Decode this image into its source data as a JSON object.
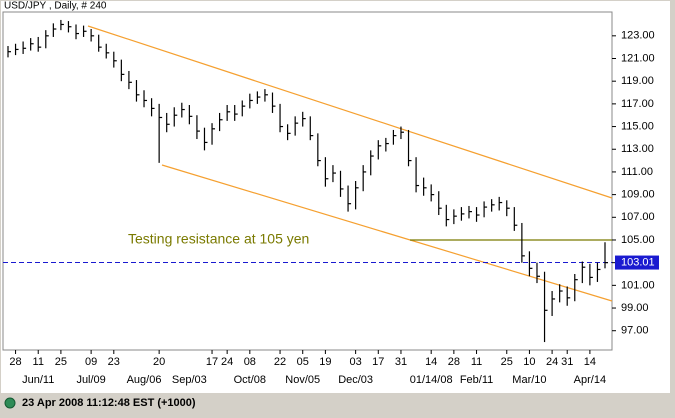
{
  "header": {
    "title": "USD/JPY , Daily, # 240"
  },
  "footer": {
    "timestamp": "23 Apr 2008 11:12:48 EST (+1000)"
  },
  "chart_data": {
    "type": "ohlc",
    "color": "#000000",
    "ylim": [
      95.3,
      125.1
    ],
    "yticks": [
      {
        "value": 97,
        "label": "97.00"
      },
      {
        "value": 99,
        "label": "99.00"
      },
      {
        "value": 101,
        "label": "101.00"
      },
      {
        "value": 103,
        "label": "103.00"
      },
      {
        "value": 105,
        "label": "105.00"
      },
      {
        "value": 107,
        "label": "107.00"
      },
      {
        "value": 109,
        "label": "109.00"
      },
      {
        "value": 111,
        "label": "111.00"
      },
      {
        "value": 113,
        "label": "113.00"
      },
      {
        "value": 115,
        "label": "115.00"
      },
      {
        "value": 117,
        "label": "117.00"
      },
      {
        "value": 119,
        "label": "119.00"
      },
      {
        "value": 121,
        "label": "121.00"
      },
      {
        "value": 123,
        "label": "123.00"
      }
    ],
    "last_price": {
      "value": 103.01,
      "label": "103.01",
      "color": "#1a1ad0"
    },
    "resistance": {
      "value": 105,
      "label": "Testing resistance at 105 yen",
      "color": "#7a7a00"
    },
    "day_labels": [
      null,
      "28",
      null,
      null,
      "11",
      null,
      null,
      "25",
      null,
      null,
      null,
      "09",
      null,
      null,
      "23",
      null,
      null,
      null,
      null,
      null,
      "20",
      null,
      null,
      null,
      null,
      null,
      null,
      "17",
      null,
      "24",
      null,
      null,
      "08",
      null,
      null,
      null,
      "22",
      null,
      null,
      "05",
      null,
      null,
      "19",
      null,
      null,
      null,
      "03",
      null,
      null,
      "17",
      null,
      null,
      "31",
      null,
      null,
      null,
      "14",
      null,
      null,
      "28",
      null,
      null,
      "11",
      null,
      null,
      null,
      "25",
      null,
      null,
      "10",
      null,
      null,
      "24",
      null,
      "31",
      null,
      null,
      "14",
      null,
      null
    ],
    "month_labels": [
      null,
      null,
      null,
      null,
      "Jun/11",
      null,
      null,
      null,
      null,
      null,
      null,
      "Jul/09",
      null,
      null,
      null,
      null,
      null,
      null,
      "Aug/06",
      null,
      null,
      null,
      null,
      null,
      "Sep/03",
      null,
      null,
      null,
      null,
      null,
      null,
      null,
      "Oct/08",
      null,
      null,
      null,
      null,
      null,
      null,
      "Nov/05",
      null,
      null,
      null,
      null,
      null,
      null,
      "Dec/03",
      null,
      null,
      null,
      null,
      null,
      null,
      null,
      null,
      null,
      "01/14/08",
      null,
      null,
      null,
      null,
      null,
      "Feb/11",
      null,
      null,
      null,
      null,
      null,
      null,
      "Mar/10",
      null,
      null,
      null,
      null,
      null,
      null,
      null,
      "Apr/14",
      null,
      null
    ],
    "high": [
      122.1,
      122.3,
      122.5,
      122.8,
      122.9,
      123.5,
      124.1,
      124.4,
      124.3,
      124.0,
      123.9,
      123.6,
      123.1,
      122.3,
      121.6,
      120.9,
      119.9,
      119.1,
      118.2,
      117.5,
      117.0,
      116.2,
      116.7,
      117.1,
      116.9,
      116.0,
      114.9,
      115.3,
      116.2,
      116.9,
      116.9,
      117.3,
      117.9,
      118.1,
      118.3,
      118.0,
      117.0,
      115.2,
      115.9,
      116.3,
      115.9,
      114.4,
      112.3,
      111.6,
      111.1,
      109.8,
      110.2,
      111.6,
      112.9,
      113.8,
      114.0,
      114.7,
      115.0,
      114.7,
      112.3,
      110.5,
      109.9,
      109.3,
      108.1,
      107.7,
      107.9,
      108.0,
      107.9,
      108.4,
      108.6,
      108.8,
      108.5,
      107.9,
      106.5,
      104.0,
      103.0,
      102.2,
      100.5,
      101.1,
      100.9,
      102.0,
      103.1,
      102.9,
      103.0,
      104.8
    ],
    "low": [
      121.1,
      121.3,
      121.4,
      121.7,
      121.6,
      121.9,
      122.9,
      123.5,
      123.3,
      122.7,
      122.9,
      122.5,
      121.6,
      121.0,
      120.2,
      119.0,
      118.3,
      117.2,
      116.7,
      115.9,
      111.8,
      114.5,
      115.0,
      115.8,
      115.2,
      113.9,
      112.9,
      113.4,
      114.6,
      115.5,
      115.5,
      115.9,
      116.6,
      117.0,
      117.2,
      116.2,
      114.5,
      113.8,
      114.2,
      115.0,
      113.8,
      111.5,
      109.7,
      110.1,
      108.8,
      107.5,
      107.7,
      109.3,
      110.7,
      112.1,
      112.8,
      113.4,
      113.9,
      111.5,
      109.2,
      108.9,
      108.4,
      107.2,
      106.2,
      106.4,
      106.7,
      106.9,
      106.6,
      107.0,
      107.5,
      107.6,
      107.1,
      105.8,
      103.0,
      101.8,
      101.2,
      96.0,
      98.3,
      99.5,
      99.2,
      99.6,
      101.2,
      101.0,
      101.3,
      102.5
    ],
    "close": [
      121.6,
      121.8,
      121.9,
      122.3,
      122.0,
      123.0,
      123.6,
      124.0,
      123.8,
      123.2,
      123.4,
      123.0,
      122.0,
      121.5,
      120.8,
      119.6,
      118.9,
      117.8,
      117.3,
      116.6,
      115.8,
      115.2,
      116.0,
      116.5,
      115.9,
      114.6,
      113.6,
      114.8,
      115.6,
      116.3,
      116.1,
      116.8,
      117.3,
      117.6,
      117.8,
      116.8,
      115.0,
      114.4,
      115.3,
      115.7,
      114.2,
      112.0,
      110.4,
      110.9,
      109.5,
      108.2,
      109.6,
      111.0,
      112.4,
      113.3,
      113.5,
      114.2,
      114.5,
      112.0,
      109.8,
      109.6,
      109.0,
      107.8,
      106.8,
      107.1,
      107.3,
      107.5,
      107.2,
      107.9,
      108.1,
      108.3,
      107.8,
      106.3,
      103.6,
      102.5,
      101.8,
      98.8,
      99.8,
      100.5,
      99.9,
      101.5,
      102.6,
      101.7,
      102.4,
      103.0
    ]
  }
}
